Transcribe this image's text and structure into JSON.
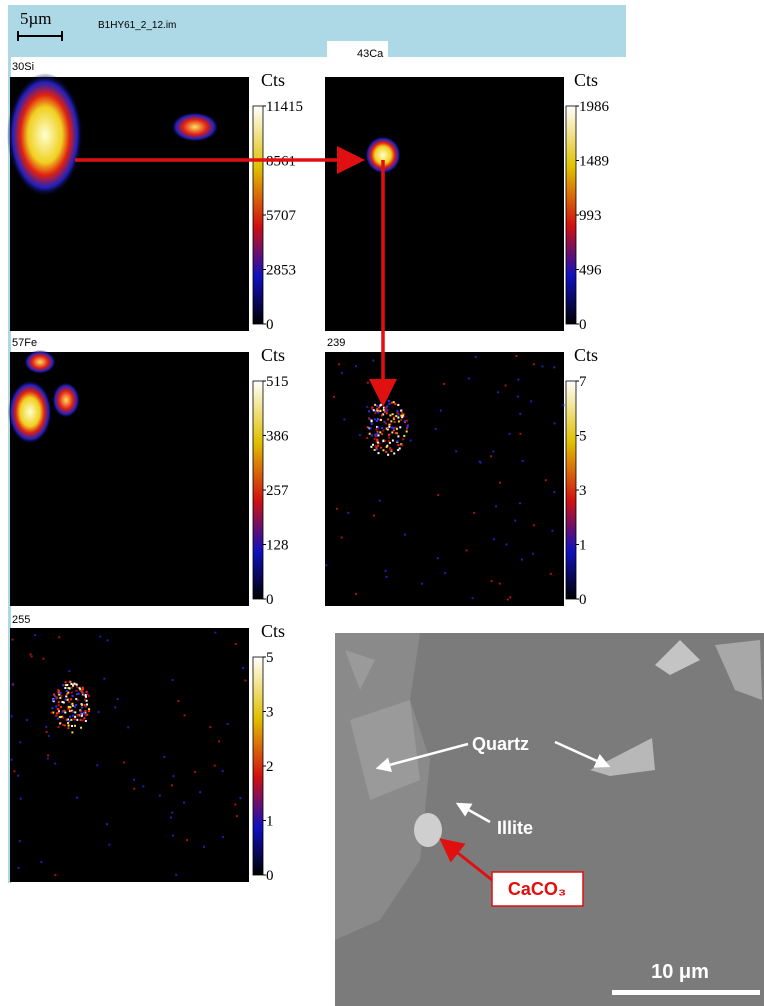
{
  "header": {
    "scale_bar": "5µm",
    "file_name": "B1HY61_2_12.im"
  },
  "panels": [
    {
      "label": "30Si",
      "unit": "Cts",
      "ticks": [
        "11415",
        "8561",
        "5707",
        "2853",
        "0"
      ]
    },
    {
      "label": "43Ca",
      "unit": "Cts",
      "ticks": [
        "1986",
        "1489",
        "993",
        "496",
        "0"
      ]
    },
    {
      "label": "57Fe",
      "unit": "Cts",
      "ticks": [
        "515",
        "386",
        "257",
        "128",
        "0"
      ]
    },
    {
      "label": "239",
      "unit": "Cts",
      "ticks": [
        "7",
        "5",
        "3",
        "1",
        "0"
      ]
    },
    {
      "label": "255",
      "unit": "Cts",
      "ticks": [
        "5",
        "3",
        "2",
        "1",
        "0"
      ]
    }
  ],
  "sem_image": {
    "labels": [
      "Quartz",
      "Illite",
      "CaCO₃"
    ],
    "scale_bar": "10 μm"
  }
}
